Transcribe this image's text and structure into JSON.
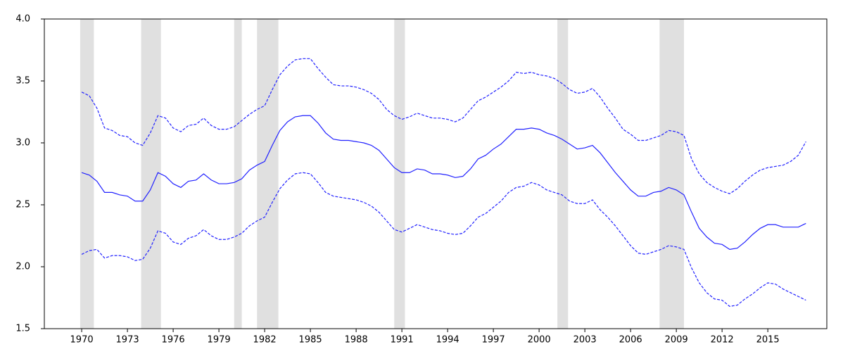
{
  "chart_data": {
    "type": "line",
    "x": [
      1970.0,
      1970.5,
      1971.0,
      1971.5,
      1972.0,
      1972.5,
      1973.0,
      1973.5,
      1974.0,
      1974.5,
      1975.0,
      1975.5,
      1976.0,
      1976.5,
      1977.0,
      1977.5,
      1978.0,
      1978.5,
      1979.0,
      1979.5,
      1980.0,
      1980.5,
      1981.0,
      1981.5,
      1982.0,
      1982.5,
      1983.0,
      1983.5,
      1984.0,
      1984.5,
      1985.0,
      1985.5,
      1986.0,
      1986.5,
      1987.0,
      1987.5,
      1988.0,
      1988.5,
      1989.0,
      1989.5,
      1990.0,
      1990.5,
      1991.0,
      1991.5,
      1992.0,
      1992.5,
      1993.0,
      1993.5,
      1994.0,
      1994.5,
      1995.0,
      1995.5,
      1996.0,
      1996.5,
      1997.0,
      1997.5,
      1998.0,
      1998.5,
      1999.0,
      1999.5,
      2000.0,
      2000.5,
      2001.0,
      2001.5,
      2002.0,
      2002.5,
      2003.0,
      2003.5,
      2004.0,
      2004.5,
      2005.0,
      2005.5,
      2006.0,
      2006.5,
      2007.0,
      2007.5,
      2008.0,
      2008.5,
      2009.0,
      2009.5,
      2010.0,
      2010.5,
      2011.0,
      2011.5,
      2012.0,
      2012.5,
      2013.0,
      2013.5,
      2014.0,
      2014.5,
      2015.0,
      2015.5,
      2016.0,
      2016.5,
      2017.0,
      2017.5
    ],
    "series": [
      {
        "color": "#2222ff",
        "dashed": false,
        "values": [
          2.76,
          2.74,
          2.69,
          2.6,
          2.6,
          2.58,
          2.57,
          2.53,
          2.53,
          2.62,
          2.76,
          2.73,
          2.67,
          2.64,
          2.69,
          2.7,
          2.75,
          2.7,
          2.67,
          2.67,
          2.68,
          2.71,
          2.78,
          2.82,
          2.85,
          2.98,
          3.1,
          3.17,
          3.21,
          3.22,
          3.22,
          3.16,
          3.08,
          3.03,
          3.02,
          3.02,
          3.01,
          3.0,
          2.98,
          2.94,
          2.87,
          2.8,
          2.76,
          2.76,
          2.79,
          2.78,
          2.75,
          2.75,
          2.74,
          2.72,
          2.73,
          2.79,
          2.87,
          2.9,
          2.95,
          2.99,
          3.05,
          3.11,
          3.11,
          3.12,
          3.11,
          3.08,
          3.06,
          3.03,
          2.99,
          2.95,
          2.96,
          2.98,
          2.92,
          2.84,
          2.76,
          2.69,
          2.62,
          2.57,
          2.57,
          2.6,
          2.61,
          2.64,
          2.62,
          2.58,
          2.44,
          2.31,
          2.24,
          2.19,
          2.18,
          2.14,
          2.15,
          2.2,
          2.26,
          2.31,
          2.34,
          2.34,
          2.32,
          2.32,
          2.32,
          2.35
        ]
      },
      {
        "color": "#2222ff",
        "dashed": true,
        "values": [
          3.41,
          3.38,
          3.28,
          3.12,
          3.1,
          3.06,
          3.05,
          3.0,
          2.98,
          3.08,
          3.22,
          3.2,
          3.12,
          3.09,
          3.14,
          3.15,
          3.2,
          3.14,
          3.11,
          3.11,
          3.13,
          3.18,
          3.23,
          3.27,
          3.3,
          3.43,
          3.55,
          3.62,
          3.67,
          3.68,
          3.68,
          3.6,
          3.53,
          3.47,
          3.46,
          3.46,
          3.45,
          3.43,
          3.4,
          3.35,
          3.27,
          3.22,
          3.19,
          3.21,
          3.24,
          3.22,
          3.2,
          3.2,
          3.19,
          3.17,
          3.2,
          3.27,
          3.34,
          3.37,
          3.41,
          3.45,
          3.5,
          3.57,
          3.56,
          3.57,
          3.55,
          3.54,
          3.52,
          3.48,
          3.43,
          3.4,
          3.41,
          3.44,
          3.37,
          3.28,
          3.2,
          3.11,
          3.07,
          3.02,
          3.02,
          3.04,
          3.06,
          3.1,
          3.09,
          3.06,
          2.87,
          2.75,
          2.68,
          2.64,
          2.61,
          2.59,
          2.63,
          2.69,
          2.74,
          2.78,
          2.8,
          2.81,
          2.82,
          2.85,
          2.9,
          3.01
        ]
      },
      {
        "color": "#2222ff",
        "dashed": true,
        "values": [
          2.1,
          2.13,
          2.14,
          2.07,
          2.09,
          2.09,
          2.08,
          2.05,
          2.06,
          2.15,
          2.29,
          2.27,
          2.2,
          2.18,
          2.23,
          2.25,
          2.3,
          2.25,
          2.22,
          2.22,
          2.24,
          2.27,
          2.33,
          2.37,
          2.4,
          2.52,
          2.63,
          2.7,
          2.75,
          2.76,
          2.75,
          2.68,
          2.6,
          2.57,
          2.56,
          2.55,
          2.54,
          2.52,
          2.49,
          2.44,
          2.37,
          2.3,
          2.28,
          2.31,
          2.34,
          2.32,
          2.3,
          2.29,
          2.27,
          2.26,
          2.27,
          2.33,
          2.4,
          2.43,
          2.48,
          2.53,
          2.6,
          2.64,
          2.65,
          2.68,
          2.66,
          2.62,
          2.6,
          2.58,
          2.53,
          2.51,
          2.51,
          2.54,
          2.46,
          2.4,
          2.33,
          2.25,
          2.17,
          2.11,
          2.1,
          2.12,
          2.14,
          2.17,
          2.16,
          2.14,
          1.99,
          1.87,
          1.79,
          1.74,
          1.73,
          1.68,
          1.69,
          1.74,
          1.78,
          1.83,
          1.87,
          1.86,
          1.82,
          1.79,
          1.76,
          1.73
        ]
      }
    ],
    "shaded_regions": [
      [
        1969.9,
        1970.8
      ],
      [
        1973.9,
        1975.2
      ],
      [
        1980.0,
        1980.5
      ],
      [
        1981.5,
        1982.9
      ],
      [
        1990.5,
        1991.2
      ],
      [
        2001.2,
        2001.9
      ],
      [
        2007.9,
        2009.5
      ]
    ],
    "shade_color": "#e0e0e0",
    "xlim": [
      1967.55,
      2018.87
    ],
    "xticks": [
      1970,
      1973,
      1976,
      1979,
      1982,
      1985,
      1988,
      1991,
      1994,
      1997,
      2000,
      2003,
      2006,
      2009,
      2012,
      2015
    ],
    "ylim": [
      1.5,
      4.0
    ],
    "yticks": [
      {
        "value": 1.5,
        "label": "1.5"
      },
      {
        "value": 2.0,
        "label": "2.0"
      },
      {
        "value": 2.5,
        "label": "2.5"
      },
      {
        "value": 3.0,
        "label": "3.0"
      },
      {
        "value": 3.5,
        "label": "3.5"
      },
      {
        "value": 4.0,
        "label": "4.0"
      }
    ]
  }
}
